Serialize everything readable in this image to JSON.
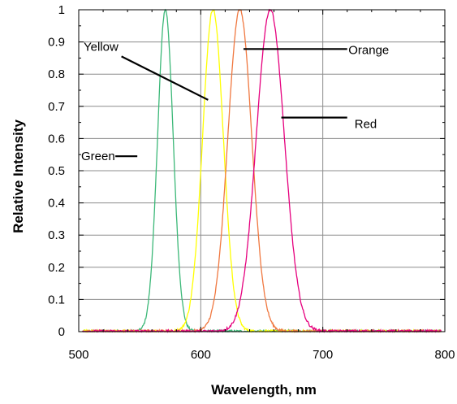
{
  "chart_data": {
    "type": "line",
    "title": "",
    "xlabel": "Wavelength, nm",
    "ylabel": "Relative Intensity",
    "xlim": [
      500,
      800
    ],
    "ylim": [
      0,
      1
    ],
    "x_ticks": [
      500,
      600,
      700,
      800
    ],
    "x_minor_step": 20,
    "y_ticks": [
      0,
      0.1,
      0.2,
      0.3,
      0.4,
      0.5,
      0.6,
      0.7,
      0.8,
      0.9,
      1
    ],
    "y_tick_labels": [
      "0",
      "0.1",
      "0.2",
      "0.3",
      "0.4",
      "0.5",
      "0.6",
      "0.7",
      "0.8",
      "0.9",
      "1"
    ],
    "grid": true,
    "noise_floor": 0.008,
    "series": [
      {
        "name": "Green",
        "peak_nm": 571,
        "fwhm_nm": 15,
        "peak_value": 1.0,
        "color": "#3cb878",
        "x_range": [
          503,
          797
        ]
      },
      {
        "name": "Yellow",
        "peak_nm": 610,
        "fwhm_nm": 20,
        "peak_value": 1.0,
        "color": "#ffff00",
        "x_range": [
          503,
          797
        ]
      },
      {
        "name": "Orange",
        "peak_nm": 632,
        "fwhm_nm": 23,
        "peak_value": 1.0,
        "color": "#f07840",
        "x_range": [
          503,
          797
        ]
      },
      {
        "name": "Red",
        "peak_nm": 657,
        "fwhm_nm": 27,
        "peak_value": 1.0,
        "color": "#e6007e",
        "x_range": [
          503,
          797
        ]
      }
    ],
    "annotations": [
      {
        "text": "Green",
        "text_x": 502,
        "text_y": 0.545,
        "line_from": [
          530,
          0.545
        ],
        "line_to": [
          548,
          0.545
        ]
      },
      {
        "text": "Yellow",
        "text_x": 504,
        "text_y": 0.885,
        "line_from": [
          535,
          0.855
        ],
        "line_to": [
          606,
          0.72
        ]
      },
      {
        "text": "Orange",
        "text_x": 721,
        "text_y": 0.875,
        "line_from": [
          635,
          0.878
        ],
        "line_to": [
          720,
          0.878
        ]
      },
      {
        "text": "Red",
        "text_x": 726,
        "text_y": 0.645,
        "line_from": [
          666,
          0.665
        ],
        "line_to": [
          720,
          0.665
        ]
      }
    ]
  }
}
